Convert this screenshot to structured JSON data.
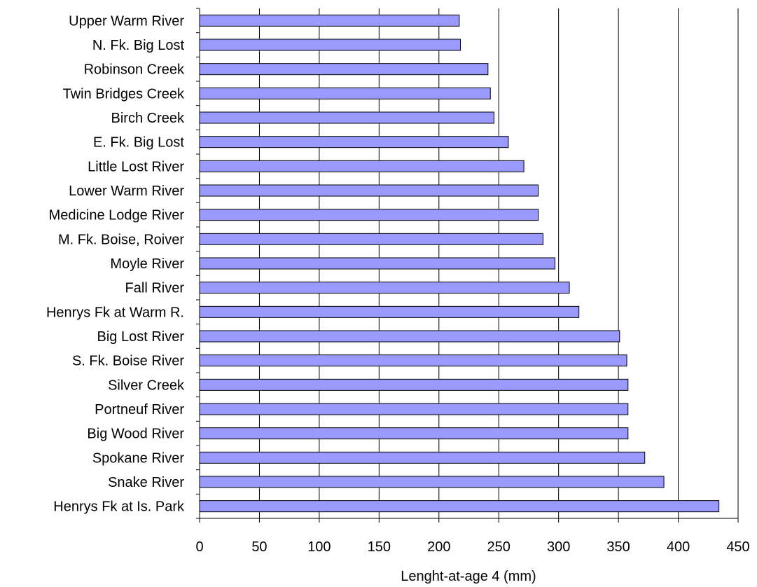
{
  "chart_data": {
    "type": "bar",
    "orientation": "horizontal",
    "title": "",
    "xlabel": "Lenght-at-age 4 (mm)",
    "ylabel": "",
    "xlim": [
      0,
      450
    ],
    "x_ticks": [
      0,
      50,
      100,
      150,
      200,
      250,
      300,
      350,
      400,
      450
    ],
    "grid": "vertical major gridlines",
    "legend": "none",
    "bar_color": "#9999ff",
    "bar_edge_color": "#000000",
    "categories": [
      "Upper Warm River",
      "N. Fk. Big Lost",
      "Robinson Creek",
      "Twin Bridges Creek",
      "Birch Creek",
      "E. Fk. Big Lost",
      "Little Lost River",
      "Lower Warm River",
      "Medicine Lodge River",
      "M. Fk. Boise, Roiver",
      "Moyle River",
      "Fall River",
      "Henrys Fk at Warm R.",
      "Big Lost River",
      "S. Fk. Boise River",
      "Silver Creek",
      "Portneuf River",
      "Big Wood River",
      "Spokane River",
      "Snake River",
      "Henrys Fk at Is. Park"
    ],
    "values": [
      217,
      218,
      241,
      243,
      246,
      258,
      271,
      283,
      283,
      287,
      297,
      309,
      317,
      351,
      357,
      358,
      358,
      358,
      372,
      388,
      434
    ]
  }
}
